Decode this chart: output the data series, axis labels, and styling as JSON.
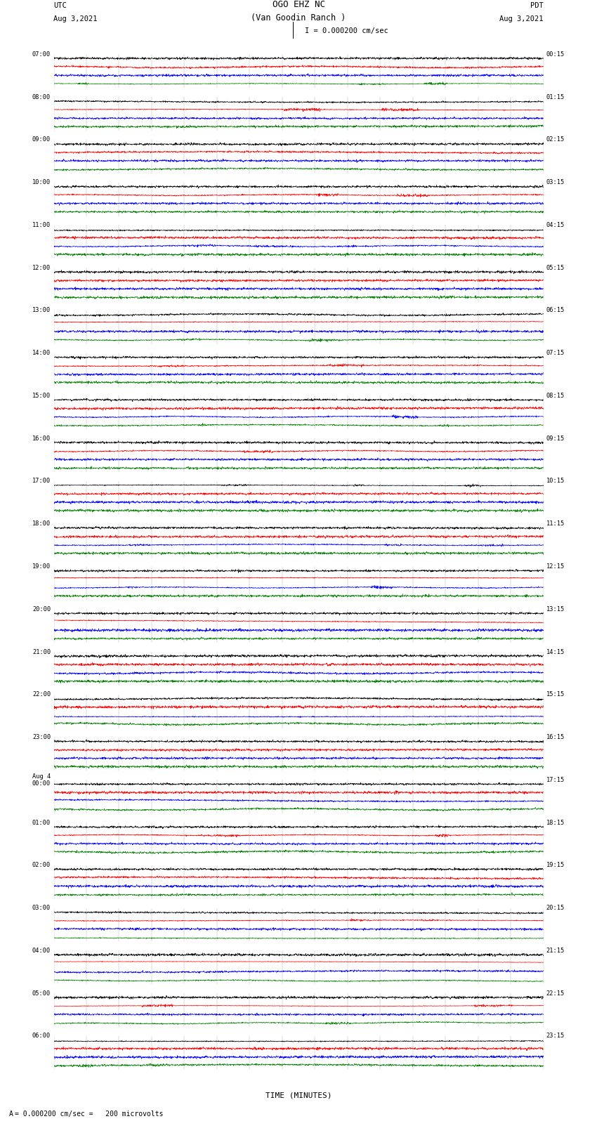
{
  "title_line1": "OGO EHZ NC",
  "title_line2": "(Van Goodin Ranch )",
  "title_scale": "I = 0.000200 cm/sec",
  "left_label_top": "UTC",
  "left_label_date": "Aug 3,2021",
  "right_label_top": "PDT",
  "right_label_date": "Aug 3,2021",
  "xlabel": "TIME (MINUTES)",
  "bottom_label": "= 0.000200 cm/sec =   200 microvolts",
  "utc_times": [
    "07:00",
    "",
    "",
    "",
    "08:00",
    "",
    "",
    "",
    "09:00",
    "",
    "",
    "",
    "10:00",
    "",
    "",
    "",
    "11:00",
    "",
    "",
    "",
    "12:00",
    "",
    "",
    "",
    "13:00",
    "",
    "",
    "",
    "14:00",
    "",
    "",
    "",
    "15:00",
    "",
    "",
    "",
    "16:00",
    "",
    "",
    "",
    "17:00",
    "",
    "",
    "",
    "18:00",
    "",
    "",
    "",
    "19:00",
    "",
    "",
    "",
    "20:00",
    "",
    "",
    "",
    "21:00",
    "",
    "",
    "",
    "22:00",
    "",
    "",
    "",
    "23:00",
    "",
    "",
    "",
    "Aug 4\n00:00",
    "",
    "",
    "",
    "01:00",
    "",
    "",
    "",
    "02:00",
    "",
    "",
    "",
    "03:00",
    "",
    "",
    "",
    "04:00",
    "",
    "",
    "",
    "05:00",
    "",
    "",
    "",
    "06:00",
    "",
    ""
  ],
  "pdt_times": [
    "00:15",
    "",
    "",
    "",
    "01:15",
    "",
    "",
    "",
    "02:15",
    "",
    "",
    "",
    "03:15",
    "",
    "",
    "",
    "04:15",
    "",
    "",
    "",
    "05:15",
    "",
    "",
    "",
    "06:15",
    "",
    "",
    "",
    "07:15",
    "",
    "",
    "",
    "08:15",
    "",
    "",
    "",
    "09:15",
    "",
    "",
    "",
    "10:15",
    "",
    "",
    "",
    "11:15",
    "",
    "",
    "",
    "12:15",
    "",
    "",
    "",
    "13:15",
    "",
    "",
    "",
    "14:15",
    "",
    "",
    "",
    "15:15",
    "",
    "",
    "",
    "16:15",
    "",
    "",
    "",
    "17:15",
    "",
    "",
    "",
    "18:15",
    "",
    "",
    "",
    "19:15",
    "",
    "",
    "",
    "20:15",
    "",
    "",
    "",
    "21:15",
    "",
    "",
    "",
    "22:15",
    "",
    "",
    "",
    "23:15",
    "",
    ""
  ],
  "colors": [
    "black",
    "red",
    "blue",
    "green"
  ],
  "n_cols": 1800,
  "x_ticks": [
    0,
    1,
    2,
    3,
    4,
    5,
    6,
    7,
    8,
    9,
    10,
    11,
    12,
    13,
    14,
    15
  ],
  "background_color": "white",
  "grid_color": "#999999"
}
